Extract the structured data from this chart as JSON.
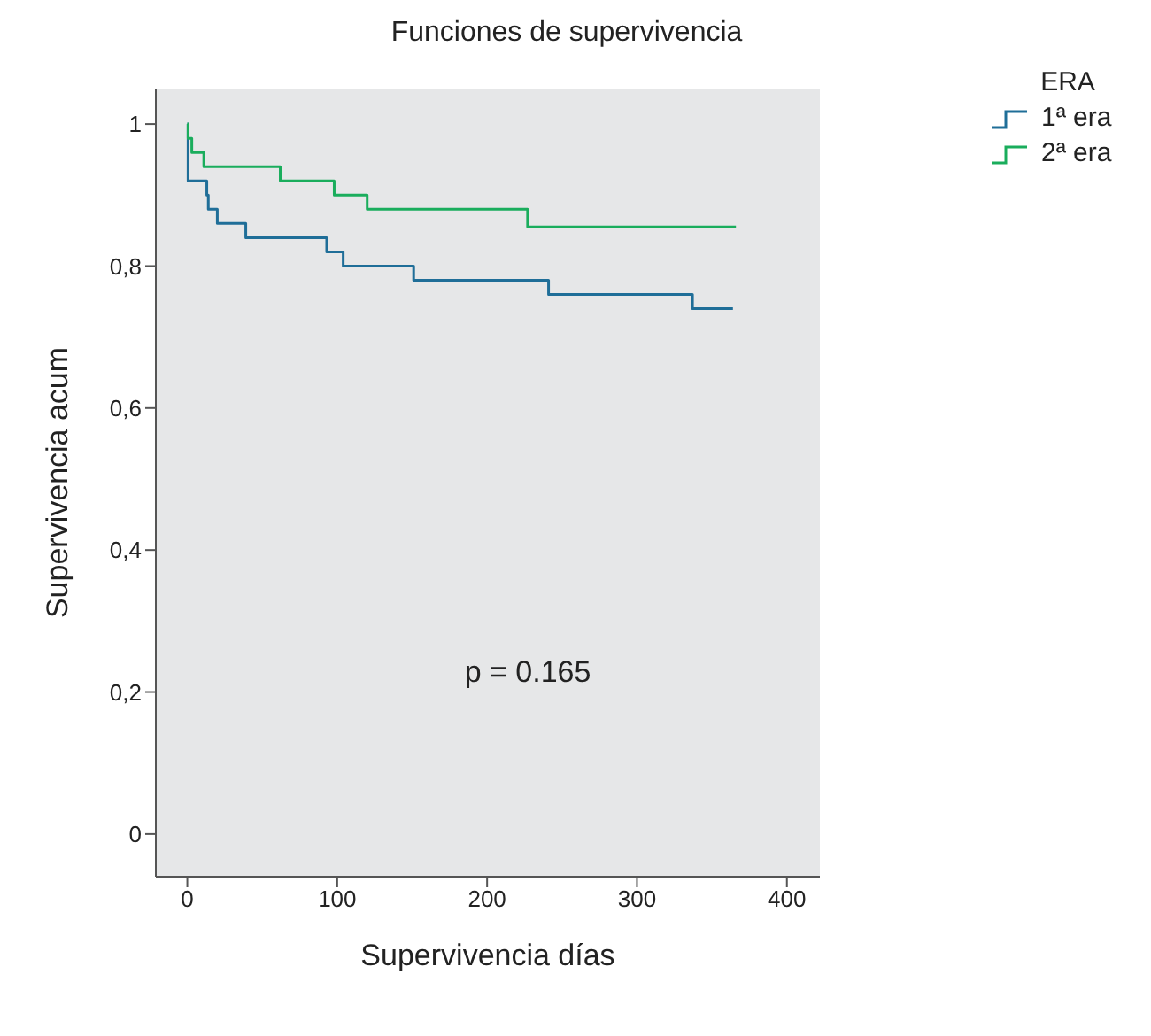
{
  "chart_data": {
    "type": "step",
    "title": "Funciones de supervivencia",
    "xlabel": "Supervivencia  días",
    "ylabel": "Supervivencia acum",
    "legend_title": "ERA",
    "legend": "top right",
    "grid": false,
    "line_style": "solid",
    "marker": "none",
    "xlim": [
      -21,
      422
    ],
    "xticks": [
      0,
      100,
      200,
      300,
      400
    ],
    "ylim": [
      -0.06,
      1.05
    ],
    "yticks": [
      {
        "value": 0,
        "label": "0"
      },
      {
        "value": 0.2,
        "label": "0,2"
      },
      {
        "value": 0.4,
        "label": "0,4"
      },
      {
        "value": 0.6,
        "label": "0,6"
      },
      {
        "value": 0.8,
        "label": "0,8"
      },
      {
        "value": 1,
        "label": "1"
      }
    ],
    "annotations": [
      "p = 0.165"
    ],
    "series": [
      {
        "name": "1ª era",
        "color": "#1f6e98",
        "x": [
          0,
          0.5,
          13,
          14,
          20,
          39,
          93,
          104,
          151,
          241,
          337,
          364
        ],
        "values": [
          1,
          0.92,
          0.9,
          0.88,
          0.86,
          0.84,
          0.82,
          0.8,
          0.78,
          0.76,
          0.74,
          0.74
        ]
      },
      {
        "name": "2ª era",
        "color": "#1aad5c",
        "x": [
          0,
          0.5,
          3,
          11,
          62,
          98,
          120,
          227,
          366
        ],
        "values": [
          1,
          0.98,
          0.96,
          0.94,
          0.92,
          0.9,
          0.88,
          0.855,
          0.855
        ]
      }
    ]
  }
}
